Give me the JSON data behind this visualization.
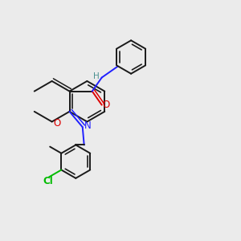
{
  "background_color": "#ebebeb",
  "bond_color": "#1a1a1a",
  "nitrogen_color": "#2020ff",
  "oxygen_color": "#dd0000",
  "chlorine_color": "#00bb00",
  "hydrogen_color": "#4a9090",
  "methyl_color": "#1a1a1a",
  "figsize": [
    3.0,
    3.0
  ],
  "dpi": 100,
  "xlim": [
    0,
    10
  ],
  "ylim": [
    0,
    10
  ]
}
